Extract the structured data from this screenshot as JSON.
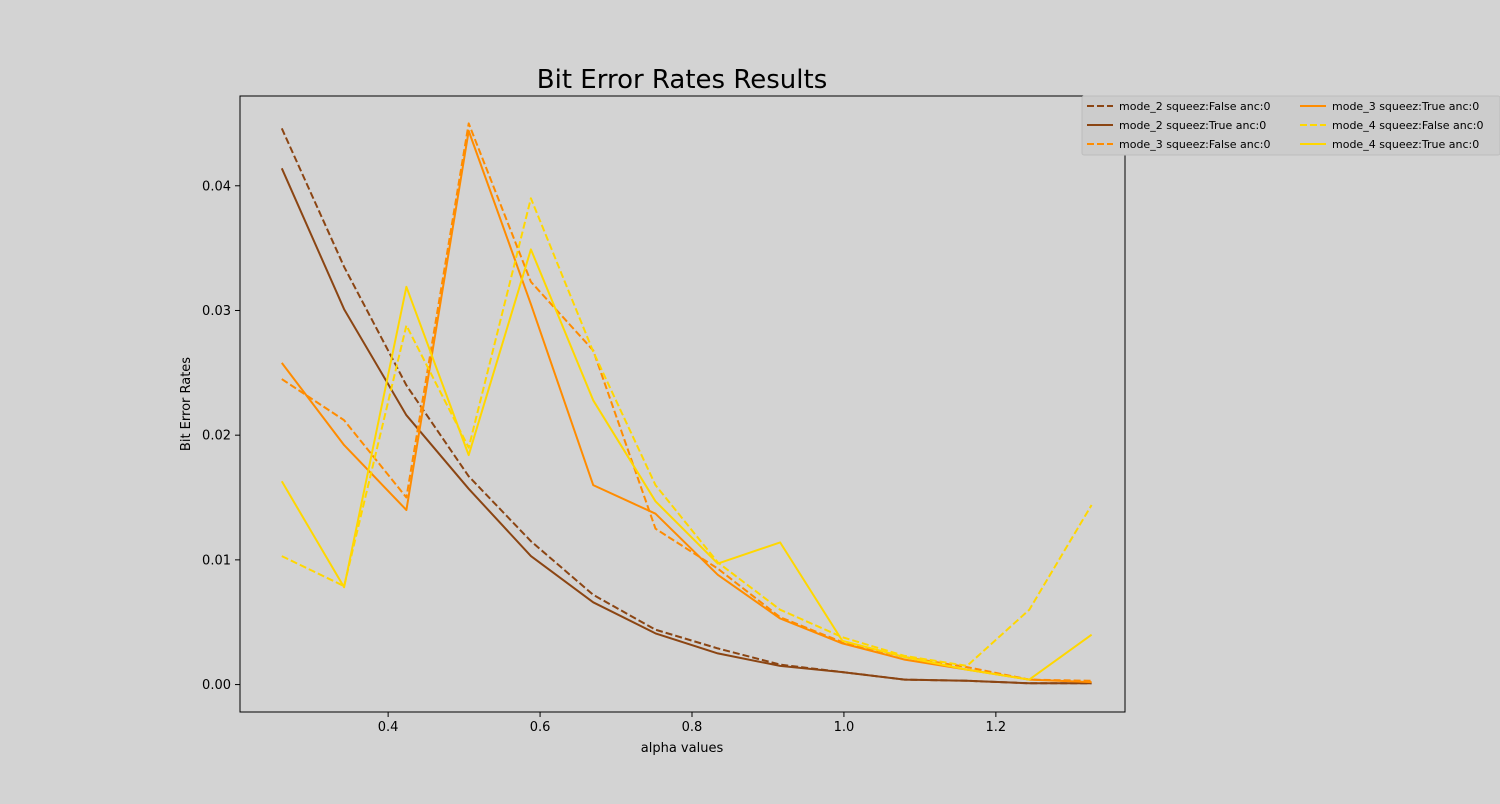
{
  "chart_data": {
    "type": "line",
    "title": "Bit Error Rates Results",
    "xlabel": "alpha values",
    "ylabel": "Bit Error Rates",
    "xlim": [
      0.205,
      1.37
    ],
    "ylim": [
      -0.0022,
      0.0472
    ],
    "xticks": [
      0.4,
      0.6,
      0.8,
      1.0,
      1.2
    ],
    "xtick_labels": [
      "0.4",
      "0.6",
      "0.8",
      "1.0",
      "1.2"
    ],
    "yticks": [
      0.0,
      0.01,
      0.02,
      0.03,
      0.04
    ],
    "ytick_labels": [
      "0.00",
      "0.01",
      "0.02",
      "0.03",
      "0.04"
    ],
    "grid": false,
    "legend_placement": "upper-right, outside plot, 2 columns",
    "x": [
      0.26,
      0.342,
      0.424,
      0.506,
      0.588,
      0.67,
      0.752,
      0.834,
      0.916,
      0.998,
      1.08,
      1.162,
      1.244,
      1.326
    ],
    "series": [
      {
        "name": "mode_2 squeez:False anc:0",
        "color": "#8b4513",
        "dash": true,
        "values": [
          0.0446,
          0.0335,
          0.024,
          0.0167,
          0.0115,
          0.0072,
          0.0044,
          0.0029,
          0.0016,
          0.001,
          0.0004,
          0.0003,
          0.0001,
          0.0001
        ]
      },
      {
        "name": "mode_2 squeez:True anc:0",
        "color": "#8b4513",
        "dash": false,
        "values": [
          0.0414,
          0.0301,
          0.0216,
          0.0157,
          0.0103,
          0.0066,
          0.0041,
          0.0025,
          0.0015,
          0.001,
          0.0004,
          0.0003,
          0.0001,
          0.0001
        ]
      },
      {
        "name": "mode_3 squeez:False anc:0",
        "color": "#ff8c00",
        "dash": true,
        "values": [
          0.0245,
          0.0212,
          0.015,
          0.045,
          0.0323,
          0.0268,
          0.0125,
          0.0093,
          0.0054,
          0.0034,
          0.0022,
          0.0014,
          0.0004,
          0.0003
        ]
      },
      {
        "name": "mode_3 squeez:True anc:0",
        "color": "#ff8c00",
        "dash": false,
        "values": [
          0.0258,
          0.0192,
          0.014,
          0.0444,
          0.0305,
          0.016,
          0.0137,
          0.0088,
          0.0053,
          0.0033,
          0.002,
          0.0012,
          0.0004,
          0.0002
        ]
      },
      {
        "name": "mode_4 squeez:False anc:0",
        "color": "#ffd700",
        "dash": true,
        "values": [
          0.0103,
          0.0079,
          0.0288,
          0.019,
          0.039,
          0.0267,
          0.016,
          0.0098,
          0.006,
          0.0038,
          0.0023,
          0.0015,
          0.006,
          0.0144
        ]
      },
      {
        "name": "mode_4 squeez:True anc:0",
        "color": "#ffd700",
        "dash": false,
        "values": [
          0.0163,
          0.0078,
          0.0319,
          0.0184,
          0.0349,
          0.0228,
          0.0147,
          0.0097,
          0.0114,
          0.0035,
          0.0022,
          0.0012,
          0.0004,
          0.004
        ]
      }
    ]
  }
}
